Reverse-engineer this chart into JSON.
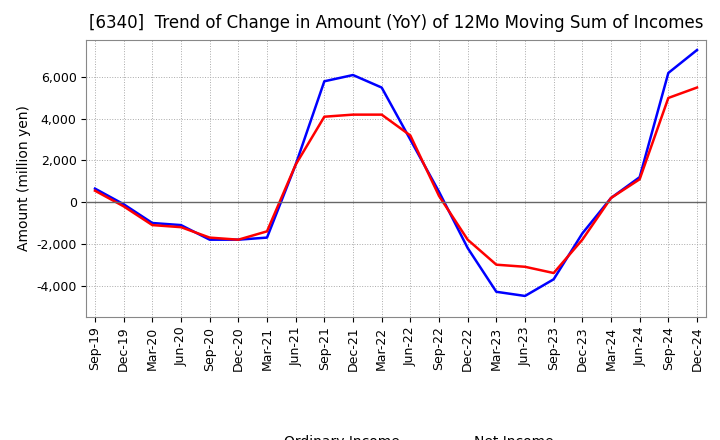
{
  "title": "[6340]  Trend of Change in Amount (YoY) of 12Mo Moving Sum of Incomes",
  "ylabel": "Amount (million yen)",
  "xlabels": [
    "Sep-19",
    "Dec-19",
    "Mar-20",
    "Jun-20",
    "Sep-20",
    "Dec-20",
    "Mar-21",
    "Jun-21",
    "Sep-21",
    "Dec-21",
    "Mar-22",
    "Jun-22",
    "Sep-22",
    "Dec-22",
    "Mar-23",
    "Jun-23",
    "Sep-23",
    "Dec-23",
    "Mar-24",
    "Jun-24",
    "Sep-24",
    "Dec-24"
  ],
  "ordinary_income": [
    650,
    -100,
    -1000,
    -1100,
    -1800,
    -1800,
    -1700,
    1800,
    5800,
    6100,
    5500,
    3000,
    500,
    -2200,
    -4300,
    -4500,
    -3700,
    -1500,
    200,
    1200,
    6200,
    7300
  ],
  "net_income": [
    550,
    -200,
    -1100,
    -1200,
    -1700,
    -1800,
    -1400,
    1800,
    4100,
    4200,
    4200,
    3200,
    300,
    -1800,
    -3000,
    -3100,
    -3400,
    -1800,
    200,
    1100,
    5000,
    5500
  ],
  "ordinary_color": "#0000ff",
  "net_color": "#ff0000",
  "ylim": [
    -5500,
    7800
  ],
  "yticks": [
    -4000,
    -2000,
    0,
    2000,
    4000,
    6000
  ],
  "bg_color": "#ffffff",
  "grid_color": "#aaaaaa",
  "grid_style": "dotted",
  "title_fontsize": 12,
  "axis_fontsize": 10,
  "tick_fontsize": 9,
  "legend_fontsize": 10
}
